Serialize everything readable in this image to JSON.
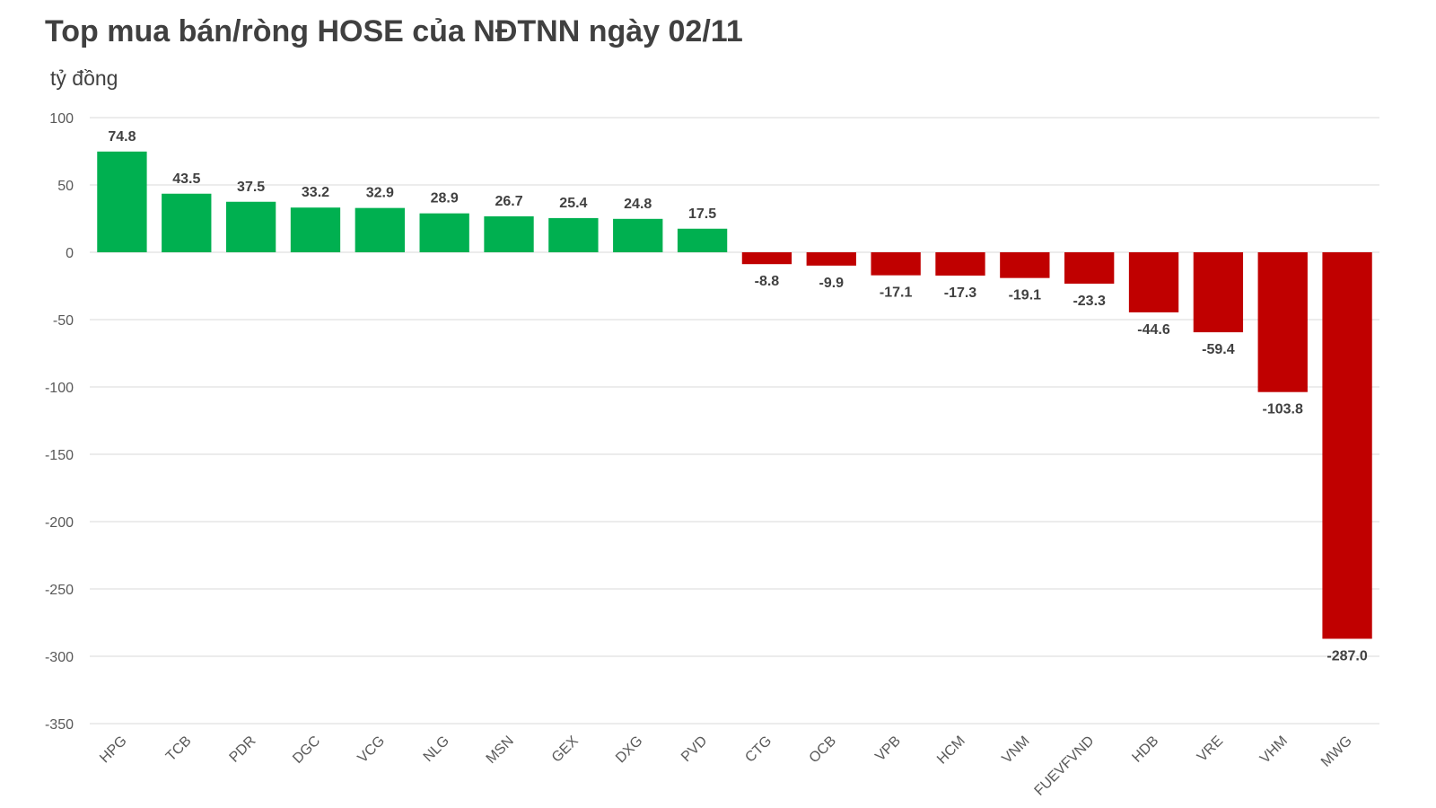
{
  "chart_data": {
    "type": "bar",
    "title": "Top mua bán/ròng HOSE của NĐTNN ngày 02/11",
    "ylabel": "tỷ đồng",
    "xlabel": "",
    "ylim": [
      -350,
      100
    ],
    "yticks": [
      100,
      50,
      0,
      -50,
      -100,
      -150,
      -200,
      -250,
      -300,
      -350
    ],
    "grid": true,
    "colors": {
      "positive": "#00b050",
      "negative": "#c00000"
    },
    "categories": [
      "HPG",
      "TCB",
      "PDR",
      "DGC",
      "VCG",
      "NLG",
      "MSN",
      "GEX",
      "DXG",
      "PVD",
      "CTG",
      "OCB",
      "VPB",
      "HCM",
      "VNM",
      "FUEVFVND",
      "HDB",
      "VRE",
      "VHM",
      "MWG"
    ],
    "values": [
      74.8,
      43.5,
      37.5,
      33.2,
      32.9,
      28.9,
      26.7,
      25.4,
      24.8,
      17.5,
      -8.8,
      -9.9,
      -17.1,
      -17.3,
      -19.1,
      -23.3,
      -44.6,
      -59.4,
      -103.8,
      -287.0
    ],
    "labels": [
      "74.8",
      "43.5",
      "37.5",
      "33.2",
      "32.9",
      "28.9",
      "26.7",
      "25.4",
      "24.8",
      "17.5",
      "-8.8",
      "-9.9",
      "-17.1",
      "-17.3",
      "-19.1",
      "-23.3",
      "-44.6",
      "-59.4",
      "-103.8",
      "-287.0"
    ]
  }
}
